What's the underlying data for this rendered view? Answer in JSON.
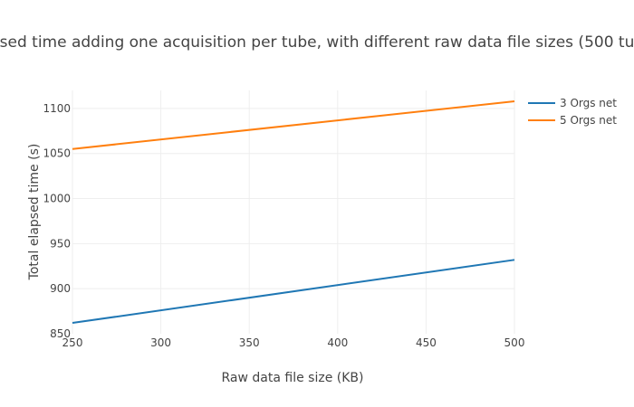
{
  "chart_data": {
    "type": "line",
    "title": "sed time adding one acquisition per tube, with different raw data file sizes (500 tu",
    "xlabel": "Raw data file size (KB)",
    "ylabel": "Total elapsed time (s)",
    "xlim": [
      250,
      500
    ],
    "ylim": [
      850,
      1120
    ],
    "xticks": [
      250,
      300,
      350,
      400,
      450,
      500
    ],
    "yticks": [
      850,
      900,
      950,
      1000,
      1050,
      1100
    ],
    "grid": true,
    "legend_position": "right",
    "series": [
      {
        "name": "3 Orgs net",
        "color": "#1f77b4",
        "x": [
          250,
          500
        ],
        "y": [
          862,
          932
        ]
      },
      {
        "name": "5 Orgs net",
        "color": "#ff7f0e",
        "x": [
          250,
          500
        ],
        "y": [
          1055,
          1108
        ]
      }
    ]
  }
}
